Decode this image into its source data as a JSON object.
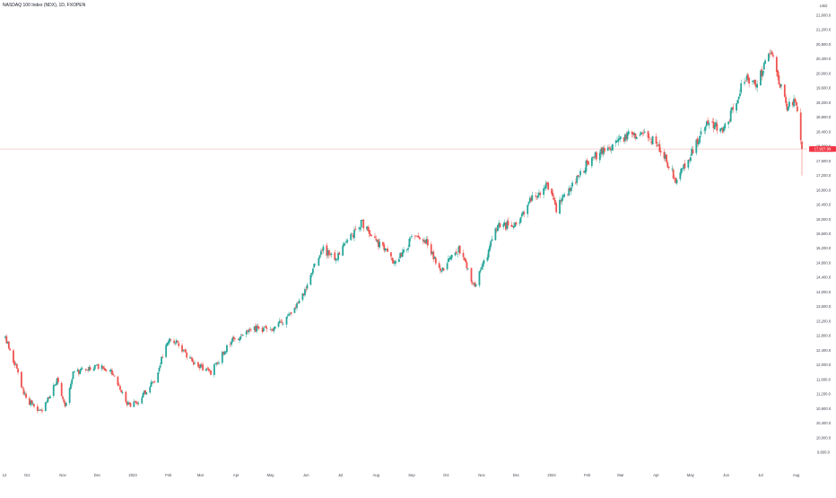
{
  "header": {
    "title": "NASDAQ 100 Index (NDX), 1D, FXOPEN"
  },
  "price_axis": {
    "currency": "USD",
    "tick_labels": [
      "21,600.0",
      "21,200.0",
      "20,800.0",
      "20,400.0",
      "20,000.0",
      "19,600.0",
      "19,200.0",
      "18,800.0",
      "18,400.0",
      "18,000.0",
      "17,600.0",
      "17,200.0",
      "16,800.0",
      "16,400.0",
      "16,000.0",
      "15,600.0",
      "15,200.0",
      "14,800.0",
      "14,400.0",
      "14,000.0",
      "13,600.0",
      "13,200.0",
      "12,800.0",
      "12,400.0",
      "12,000.0",
      "11,600.0",
      "11,200.0",
      "10,800.0",
      "10,400.0",
      "10,000.0",
      "9,600.0"
    ],
    "last_price_label": "17,927.99"
  },
  "time_axis": {
    "labels": [
      "12",
      "Oct",
      "Nov",
      "Dec",
      "2023",
      "Feb",
      "Mar",
      "Apr",
      "May",
      "Jun",
      "Jul",
      "Aug",
      "Sep",
      "Oct",
      "Nov",
      "Dec",
      "2024",
      "Feb",
      "Mar",
      "Apr",
      "May",
      "Jun",
      "Jul",
      "Aug"
    ]
  },
  "colors": {
    "up": "#26a69a",
    "down": "#ef5350",
    "price_line": "#f2b8b8",
    "price_label_bg": "#f23645",
    "axis_text": "#434651"
  },
  "chart_data": {
    "type": "candlestick",
    "title": "NASDAQ 100 Index (NDX), 1D, FXOPEN",
    "xlabel": "",
    "ylabel": "USD",
    "ylim": [
      9500,
      21800
    ],
    "last_price": 17927.99,
    "grid": false,
    "x_range": [
      "2022-09-12",
      "2024-08-06"
    ],
    "anchors": [
      {
        "date": "2022-09-12",
        "close": 12700
      },
      {
        "date": "2022-09-20",
        "close": 12050
      },
      {
        "date": "2022-09-30",
        "close": 11050
      },
      {
        "date": "2022-10-13",
        "close": 10700
      },
      {
        "date": "2022-10-27",
        "close": 11550
      },
      {
        "date": "2022-11-03",
        "close": 10800
      },
      {
        "date": "2022-11-10",
        "close": 11750
      },
      {
        "date": "2022-11-30",
        "close": 12000
      },
      {
        "date": "2022-12-13",
        "close": 11800
      },
      {
        "date": "2022-12-28",
        "close": 10900
      },
      {
        "date": "2023-01-06",
        "close": 11000
      },
      {
        "date": "2023-01-20",
        "close": 11600
      },
      {
        "date": "2023-02-02",
        "close": 12800
      },
      {
        "date": "2023-02-24",
        "close": 12050
      },
      {
        "date": "2023-03-10",
        "close": 11800
      },
      {
        "date": "2023-03-29",
        "close": 12700
      },
      {
        "date": "2023-04-20",
        "close": 13000
      },
      {
        "date": "2023-05-04",
        "close": 12950
      },
      {
        "date": "2023-05-25",
        "close": 13650
      },
      {
        "date": "2023-06-15",
        "close": 15200
      },
      {
        "date": "2023-06-26",
        "close": 14900
      },
      {
        "date": "2023-07-19",
        "close": 15900
      },
      {
        "date": "2023-08-18",
        "close": 14800
      },
      {
        "date": "2023-09-01",
        "close": 15450
      },
      {
        "date": "2023-09-14",
        "close": 15400
      },
      {
        "date": "2023-09-26",
        "close": 14600
      },
      {
        "date": "2023-10-12",
        "close": 15150
      },
      {
        "date": "2023-10-26",
        "close": 14150
      },
      {
        "date": "2023-11-15",
        "close": 15800
      },
      {
        "date": "2023-12-01",
        "close": 15850
      },
      {
        "date": "2023-12-14",
        "close": 16600
      },
      {
        "date": "2023-12-28",
        "close": 16900
      },
      {
        "date": "2024-01-05",
        "close": 16300
      },
      {
        "date": "2024-01-31",
        "close": 17500
      },
      {
        "date": "2024-02-15",
        "close": 17900
      },
      {
        "date": "2024-03-07",
        "close": 18300
      },
      {
        "date": "2024-03-21",
        "close": 18350
      },
      {
        "date": "2024-04-02",
        "close": 18050
      },
      {
        "date": "2024-04-19",
        "close": 17050
      },
      {
        "date": "2024-05-03",
        "close": 17900
      },
      {
        "date": "2024-05-15",
        "close": 18600
      },
      {
        "date": "2024-05-31",
        "close": 18500
      },
      {
        "date": "2024-06-18",
        "close": 19900
      },
      {
        "date": "2024-06-27",
        "close": 19700
      },
      {
        "date": "2024-07-10",
        "close": 20650
      },
      {
        "date": "2024-07-17",
        "close": 19800
      },
      {
        "date": "2024-07-24",
        "close": 19000
      },
      {
        "date": "2024-07-31",
        "close": 19350
      },
      {
        "date": "2024-08-06",
        "close": 17928
      }
    ]
  }
}
